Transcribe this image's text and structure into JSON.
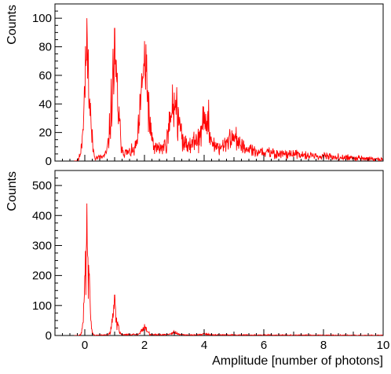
{
  "chart_data": [
    {
      "type": "line",
      "title": "",
      "xlabel": "",
      "ylabel": "Counts",
      "xlim": [
        -1,
        10
      ],
      "ylim": [
        0,
        110
      ],
      "x_ticks": [
        0,
        2,
        4,
        6,
        8,
        10
      ],
      "y_ticks": [
        0,
        20,
        40,
        60,
        80,
        100
      ],
      "x_tick_labels": [],
      "y_tick_labels": [
        "0",
        "20",
        "40",
        "60",
        "80",
        "100"
      ],
      "grid": false,
      "legend": "none",
      "series": [
        {
          "color": "#ff0000",
          "peaks": [
            {
              "x": 0.07,
              "height": 100
            },
            {
              "x": 1.0,
              "height": 93
            },
            {
              "x": 2.0,
              "height": 84
            },
            {
              "x": 3.0,
              "height": 48
            },
            {
              "x": 4.0,
              "height": 26
            },
            {
              "x": 5.0,
              "height": 14
            }
          ],
          "peak_width": 0.1,
          "baseline": [
            {
              "x": 1.5,
              "y": 6
            },
            {
              "x": 3.5,
              "y": 12
            },
            {
              "x": 4.5,
              "y": 10
            },
            {
              "x": 6.0,
              "y": 6
            },
            {
              "x": 8.0,
              "y": 3
            },
            {
              "x": 10.0,
              "y": 1
            }
          ],
          "isolated_spikes": [
            {
              "x": 4.15,
              "y": 43
            }
          ]
        }
      ]
    },
    {
      "type": "line",
      "title": "",
      "xlabel": "Amplitude [number of photons]",
      "ylabel": "Counts",
      "xlim": [
        -1,
        10
      ],
      "ylim": [
        0,
        550
      ],
      "x_ticks": [
        0,
        2,
        4,
        6,
        8,
        10
      ],
      "y_ticks": [
        0,
        100,
        200,
        300,
        400,
        500
      ],
      "x_tick_labels": [
        "0",
        "2",
        "4",
        "6",
        "8",
        "10"
      ],
      "y_tick_labels": [
        "0",
        "100",
        "200",
        "300",
        "400",
        "500"
      ],
      "grid": false,
      "legend": "none",
      "series": [
        {
          "color": "#ff0000",
          "peaks": [
            {
              "x": 0.07,
              "height": 440
            },
            {
              "x": 1.0,
              "height": 135
            },
            {
              "x": 2.0,
              "height": 38
            },
            {
              "x": 3.0,
              "height": 12
            },
            {
              "x": 4.0,
              "height": 5
            }
          ],
          "peak_width": 0.07,
          "baseline": [
            {
              "x": 1.5,
              "y": 3
            },
            {
              "x": 4.0,
              "y": 2
            },
            {
              "x": 10.0,
              "y": 0.5
            }
          ],
          "isolated_spikes": []
        }
      ]
    }
  ]
}
